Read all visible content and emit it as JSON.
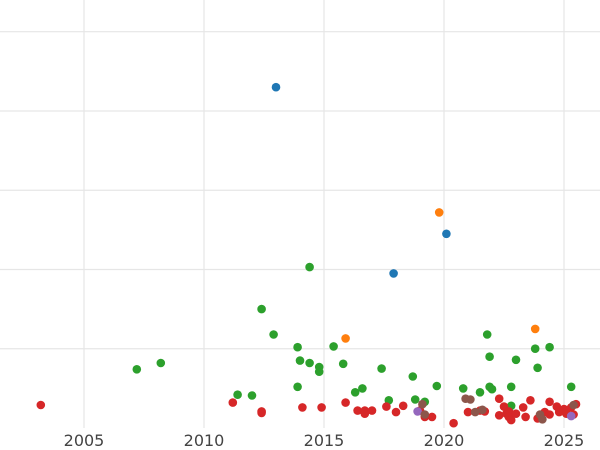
{
  "chart_data": {
    "type": "scatter",
    "title": "",
    "xlabel": "",
    "ylabel": "",
    "xlim": [
      2001.5,
      2026.5
    ],
    "ylim": [
      0,
      5.4
    ],
    "xticks": [
      2005,
      2010,
      2015,
      2020,
      2025
    ],
    "xtick_labels": [
      "2005",
      "2010",
      "2015",
      "2020",
      "2025"
    ],
    "yticks": [
      1,
      2,
      3,
      4,
      5
    ],
    "grid": true,
    "legend": "none",
    "series": [
      {
        "color": "#1f77b4",
        "points": [
          [
            2013.0,
            4.3
          ],
          [
            2017.9,
            1.95
          ],
          [
            2020.1,
            2.45
          ]
        ]
      },
      {
        "color": "#ff7f0e",
        "points": [
          [
            2015.9,
            1.13
          ],
          [
            2019.8,
            2.72
          ],
          [
            2023.8,
            1.25
          ]
        ]
      },
      {
        "color": "#2ca02c",
        "points": [
          [
            2007.2,
            0.74
          ],
          [
            2008.2,
            0.82
          ],
          [
            2011.4,
            0.42
          ],
          [
            2012.0,
            0.41
          ],
          [
            2012.4,
            1.5
          ],
          [
            2012.9,
            1.18
          ],
          [
            2013.9,
            1.02
          ],
          [
            2014.0,
            0.85
          ],
          [
            2013.9,
            0.52
          ],
          [
            2014.4,
            0.82
          ],
          [
            2014.4,
            2.03
          ],
          [
            2014.8,
            0.77
          ],
          [
            2014.8,
            0.71
          ],
          [
            2015.4,
            1.03
          ],
          [
            2015.8,
            0.81
          ],
          [
            2016.3,
            0.45
          ],
          [
            2016.6,
            0.5
          ],
          [
            2017.4,
            0.75
          ],
          [
            2017.7,
            0.35
          ],
          [
            2018.7,
            0.65
          ],
          [
            2018.8,
            0.36
          ],
          [
            2019.2,
            0.33
          ],
          [
            2019.7,
            0.53
          ],
          [
            2020.8,
            0.5
          ],
          [
            2021.5,
            0.45
          ],
          [
            2021.8,
            1.18
          ],
          [
            2021.9,
            0.9
          ],
          [
            2021.9,
            0.52
          ],
          [
            2022.0,
            0.49
          ],
          [
            2022.8,
            0.52
          ],
          [
            2022.8,
            0.28
          ],
          [
            2023.0,
            0.86
          ],
          [
            2023.8,
            1.0
          ],
          [
            2023.9,
            0.76
          ],
          [
            2024.4,
            1.02
          ],
          [
            2025.3,
            0.52
          ]
        ]
      },
      {
        "color": "#d62728",
        "points": [
          [
            2003.2,
            0.29
          ],
          [
            2011.2,
            0.32
          ],
          [
            2012.4,
            0.19
          ],
          [
            2012.4,
            0.21
          ],
          [
            2014.1,
            0.26
          ],
          [
            2014.9,
            0.26
          ],
          [
            2015.9,
            0.32
          ],
          [
            2016.4,
            0.22
          ],
          [
            2016.7,
            0.22
          ],
          [
            2016.7,
            0.18
          ],
          [
            2017.0,
            0.22
          ],
          [
            2017.6,
            0.27
          ],
          [
            2018.0,
            0.2
          ],
          [
            2018.3,
            0.28
          ],
          [
            2019.0,
            0.22
          ],
          [
            2019.2,
            0.14
          ],
          [
            2019.5,
            0.14
          ],
          [
            2020.4,
            0.06
          ],
          [
            2021.0,
            0.2
          ],
          [
            2021.5,
            0.22
          ],
          [
            2021.7,
            0.21
          ],
          [
            2022.3,
            0.37
          ],
          [
            2022.3,
            0.16
          ],
          [
            2022.5,
            0.27
          ],
          [
            2022.6,
            0.18
          ],
          [
            2022.7,
            0.21
          ],
          [
            2022.7,
            0.14
          ],
          [
            2022.8,
            0.1
          ],
          [
            2023.0,
            0.18
          ],
          [
            2023.3,
            0.26
          ],
          [
            2023.4,
            0.14
          ],
          [
            2023.6,
            0.35
          ],
          [
            2023.9,
            0.12
          ],
          [
            2024.2,
            0.2
          ],
          [
            2024.4,
            0.33
          ],
          [
            2024.4,
            0.17
          ],
          [
            2024.7,
            0.27
          ],
          [
            2024.8,
            0.2
          ],
          [
            2025.0,
            0.24
          ],
          [
            2025.1,
            0.18
          ],
          [
            2025.3,
            0.26
          ],
          [
            2025.5,
            0.3
          ],
          [
            2025.4,
            0.17
          ]
        ]
      },
      {
        "color": "#9467bd",
        "points": [
          [
            2018.9,
            0.21
          ],
          [
            2025.3,
            0.15
          ]
        ]
      },
      {
        "color": "#8c564b",
        "points": [
          [
            2019.1,
            0.3
          ],
          [
            2019.2,
            0.17
          ],
          [
            2020.9,
            0.37
          ],
          [
            2021.1,
            0.36
          ],
          [
            2021.3,
            0.2
          ],
          [
            2021.6,
            0.23
          ],
          [
            2024.0,
            0.17
          ],
          [
            2024.1,
            0.11
          ],
          [
            2025.4,
            0.29
          ]
        ]
      }
    ]
  }
}
